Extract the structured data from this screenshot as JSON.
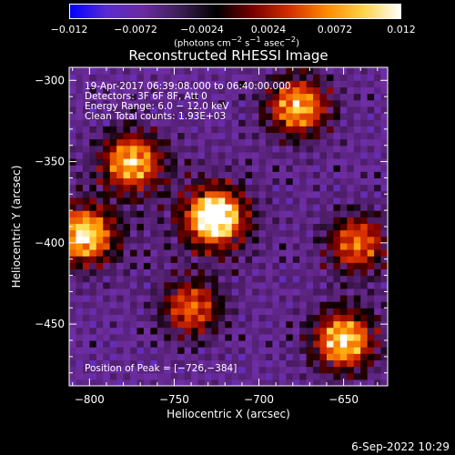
{
  "colorbar": {
    "ticks": [
      "−0.012",
      "−0.0072",
      "−0.0024",
      "0.0024",
      "0.0072",
      "0.012"
    ],
    "units_main": "(photons cm",
    "units_sup1": "−2",
    "units_mid1": " s",
    "units_sup2": "−1",
    "units_mid2": " asec",
    "units_sup3": "−2",
    "units_end": ")",
    "colors": [
      "#0000ff",
      "#5a2bd0",
      "#6a2b9e",
      "#3c1f55",
      "#000000",
      "#7a0000",
      "#d43000",
      "#ff8a00",
      "#ffd34a",
      "#ffffff"
    ]
  },
  "title": "Reconstructed RHESSI Image",
  "annotations": {
    "line1": "19-Apr-2017 06:39:08.000 to 06:40:00.000",
    "line2": "Detectors: 3F 6F 8F, Att 0",
    "line3": "Energy Range: 6.0 − 12.0 keV",
    "line4": "Clean     Total counts: 1.93E+03",
    "peak": "Position of Peak = [−726,−384]"
  },
  "footer": {
    "date": "6-Sep-2022 10:29"
  },
  "chart_data": {
    "type": "heatmap",
    "title": "Reconstructed RHESSI Image",
    "xlabel": "Heliocentric X (arcsec)",
    "ylabel": "Heliocentric Y (arcsec)",
    "xlim": [
      -812,
      -624
    ],
    "ylim": [
      -488,
      -292
    ],
    "x_ticks": [
      -800,
      -750,
      -700,
      -650
    ],
    "x_tick_labels": [
      "−800",
      "−750",
      "−700",
      "−650"
    ],
    "y_ticks": [
      -300,
      -350,
      -400,
      -450
    ],
    "y_tick_labels": [
      "−300",
      "−350",
      "−400",
      "−450"
    ],
    "colorbar_range": [
      -0.012,
      0.012
    ],
    "peak_position": [
      -726,
      -384
    ],
    "sources": [
      {
        "x": -726,
        "y": -384,
        "intensity": 1.0
      },
      {
        "x": -803,
        "y": -395,
        "intensity": 0.8
      },
      {
        "x": -775,
        "y": -350,
        "intensity": 0.72
      },
      {
        "x": -677,
        "y": -316,
        "intensity": 0.7
      },
      {
        "x": -650,
        "y": -460,
        "intensity": 0.78
      },
      {
        "x": -642,
        "y": -400,
        "intensity": 0.55
      },
      {
        "x": -740,
        "y": -440,
        "intensity": 0.52
      }
    ]
  }
}
